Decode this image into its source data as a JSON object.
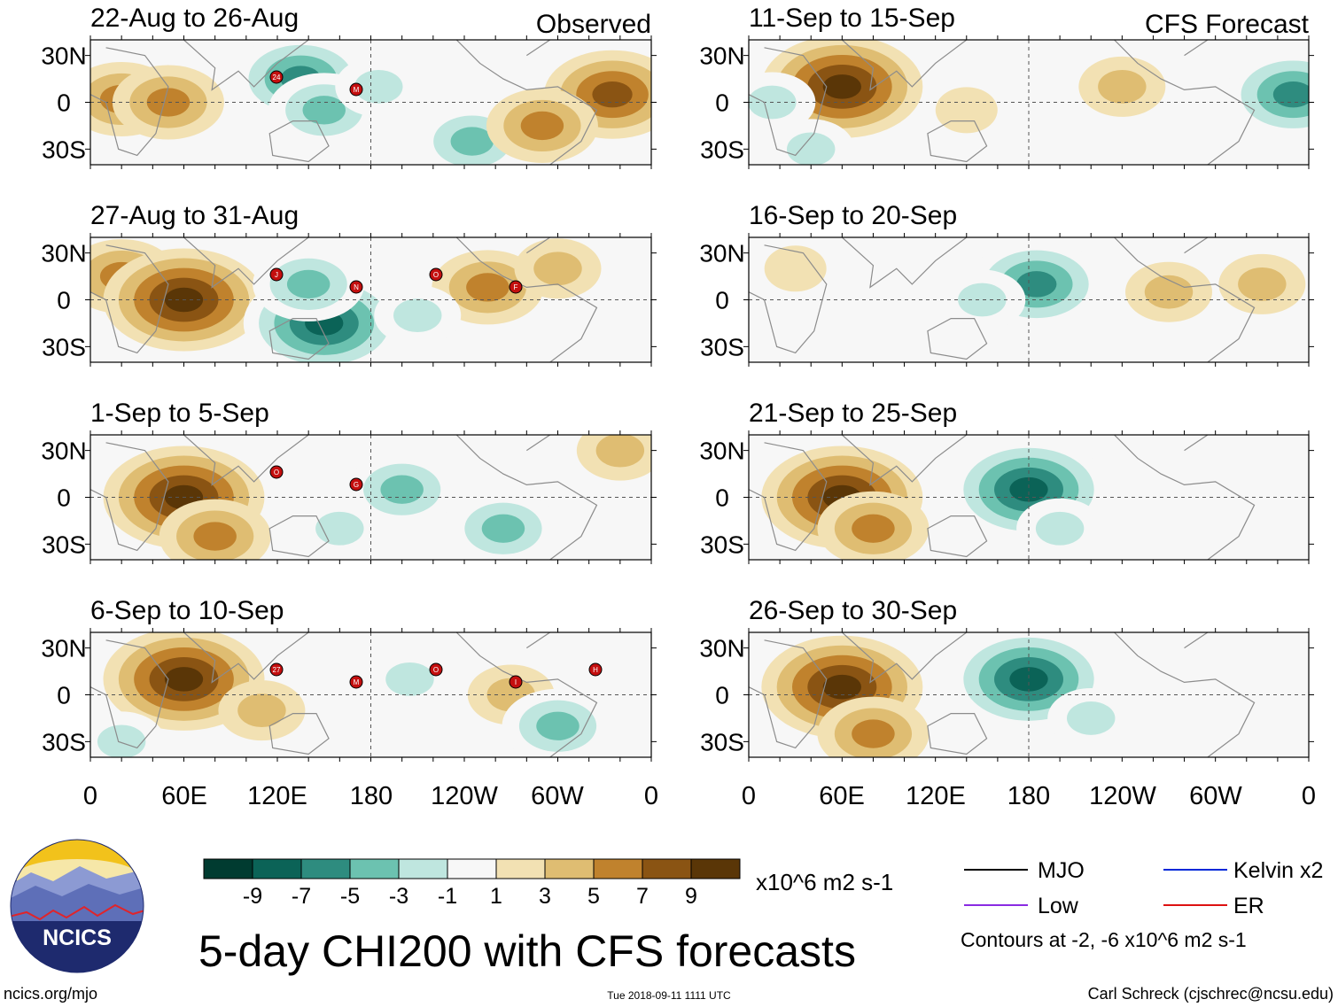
{
  "chart_data": {
    "type": "heatmap",
    "title": "5-day CHI200 with CFS forecasts",
    "variable": "CHI200 (200-hPa velocity potential)",
    "units": "x10^6 m2 s-1",
    "x_axis": {
      "ticks": [
        "0",
        "60E",
        "120E",
        "180",
        "120W",
        "60W",
        "0"
      ],
      "range_degrees": [
        0,
        360
      ]
    },
    "y_axis": {
      "ticks": [
        "30N",
        "0",
        "30S"
      ],
      "range_degrees": [
        -40,
        40
      ]
    },
    "colorbar": {
      "labels": [
        "-9",
        "-7",
        "-5",
        "-3",
        "-1",
        "1",
        "3",
        "5",
        "7",
        "9"
      ],
      "colors": [
        "#003b30",
        "#0b6357",
        "#2e8c7f",
        "#6cc2b0",
        "#bfe6df",
        "#f7f7f7",
        "#f2e1b3",
        "#dfbd72",
        "#c0822d",
        "#8a5413",
        "#5a3607"
      ]
    },
    "legend": {
      "entries": [
        {
          "name": "MJO",
          "color": "#000000"
        },
        {
          "name": "Kelvin x2",
          "color": "#0028d8"
        },
        {
          "name": "Low",
          "color": "#8a2be2"
        },
        {
          "name": "ER",
          "color": "#dd1111"
        }
      ],
      "note": "Contours at -2, -6 x10^6 m2 s-1"
    },
    "column_headers": {
      "left": "Observed",
      "right": "CFS Forecast"
    },
    "panels": [
      {
        "label": "22-Aug to 26-Aug",
        "group": "Observed",
        "storms": [
          "24",
          "M"
        ],
        "anomalies": [
          {
            "lon": 20,
            "lat": 2,
            "value": 5
          },
          {
            "lon": 50,
            "lat": 0,
            "value": 5
          },
          {
            "lon": 135,
            "lat": 15,
            "value": -7
          },
          {
            "lon": 150,
            "lat": -5,
            "value": -5
          },
          {
            "lon": 185,
            "lat": 10,
            "value": -3
          },
          {
            "lon": 245,
            "lat": -25,
            "value": -5
          },
          {
            "lon": 335,
            "lat": 5,
            "value": 7
          },
          {
            "lon": 290,
            "lat": -15,
            "value": 5
          }
        ]
      },
      {
        "label": "27-Aug to 31-Aug",
        "group": "Observed",
        "storms": [
          "J",
          "N",
          "O",
          "F"
        ],
        "anomalies": [
          {
            "lon": 20,
            "lat": 15,
            "value": 5
          },
          {
            "lon": 60,
            "lat": 0,
            "value": 9
          },
          {
            "lon": 150,
            "lat": -15,
            "value": -9
          },
          {
            "lon": 140,
            "lat": 10,
            "value": -5
          },
          {
            "lon": 255,
            "lat": 8,
            "value": 5
          },
          {
            "lon": 300,
            "lat": 20,
            "value": 3
          },
          {
            "lon": 210,
            "lat": -10,
            "value": -3
          }
        ]
      },
      {
        "label": "1-Sep to 5-Sep",
        "group": "Observed",
        "storms": [
          "O",
          "G"
        ],
        "anomalies": [
          {
            "lon": 60,
            "lat": 0,
            "value": 9
          },
          {
            "lon": 80,
            "lat": -25,
            "value": 5
          },
          {
            "lon": 160,
            "lat": -20,
            "value": -3
          },
          {
            "lon": 200,
            "lat": 5,
            "value": -5
          },
          {
            "lon": 265,
            "lat": -20,
            "value": -5
          },
          {
            "lon": 340,
            "lat": 30,
            "value": 3
          }
        ]
      },
      {
        "label": "6-Sep to 10-Sep",
        "group": "Observed",
        "storms": [
          "27",
          "M",
          "O",
          "I",
          "H"
        ],
        "anomalies": [
          {
            "lon": 60,
            "lat": 10,
            "value": 9
          },
          {
            "lon": 110,
            "lat": -10,
            "value": 3
          },
          {
            "lon": 205,
            "lat": 10,
            "value": -3
          },
          {
            "lon": 270,
            "lat": 0,
            "value": 3
          },
          {
            "lon": 300,
            "lat": -20,
            "value": -5
          },
          {
            "lon": 20,
            "lat": -30,
            "value": -3
          }
        ]
      },
      {
        "label": "11-Sep to 15-Sep",
        "group": "CFS Forecast",
        "storms": [],
        "anomalies": [
          {
            "lon": 60,
            "lat": 10,
            "value": 9
          },
          {
            "lon": 15,
            "lat": 0,
            "value": -3
          },
          {
            "lon": 40,
            "lat": -30,
            "value": -3
          },
          {
            "lon": 140,
            "lat": -5,
            "value": 1
          },
          {
            "lon": 240,
            "lat": 10,
            "value": 3
          },
          {
            "lon": 350,
            "lat": 5,
            "value": -7
          }
        ]
      },
      {
        "label": "16-Sep to 20-Sep",
        "group": "CFS Forecast",
        "storms": [],
        "anomalies": [
          {
            "lon": 185,
            "lat": 10,
            "value": -7
          },
          {
            "lon": 150,
            "lat": 0,
            "value": -3
          },
          {
            "lon": 270,
            "lat": 5,
            "value": 3
          },
          {
            "lon": 330,
            "lat": 10,
            "value": 3
          },
          {
            "lon": 30,
            "lat": 20,
            "value": 1
          }
        ]
      },
      {
        "label": "21-Sep to 25-Sep",
        "group": "CFS Forecast",
        "storms": [],
        "anomalies": [
          {
            "lon": 60,
            "lat": 0,
            "value": 9
          },
          {
            "lon": 80,
            "lat": -20,
            "value": 5
          },
          {
            "lon": 180,
            "lat": 5,
            "value": -9
          },
          {
            "lon": 200,
            "lat": -20,
            "value": -3
          },
          {
            "lon": 340,
            "lat": 5,
            "value": -1
          }
        ]
      },
      {
        "label": "26-Sep to 30-Sep",
        "group": "CFS Forecast",
        "storms": [],
        "anomalies": [
          {
            "lon": 60,
            "lat": 5,
            "value": 9
          },
          {
            "lon": 80,
            "lat": -25,
            "value": 5
          },
          {
            "lon": 180,
            "lat": 10,
            "value": -9
          },
          {
            "lon": 220,
            "lat": -15,
            "value": -3
          },
          {
            "lon": 340,
            "lat": -10,
            "value": -1
          }
        ]
      }
    ]
  },
  "branding": {
    "logo_text": "NCICS",
    "url": "ncics.org/mjo",
    "timestamp": "Tue 2018-09-11 1111 UTC",
    "author": "Carl Schreck (cjschrec@ncsu.edu)"
  }
}
